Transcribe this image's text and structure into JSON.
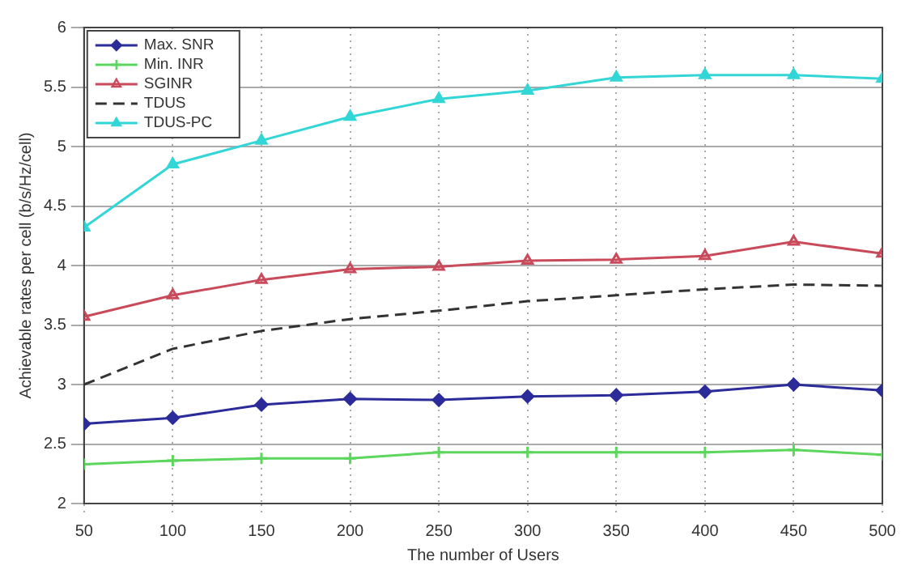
{
  "chart_data": {
    "type": "line",
    "xlabel": "The number of Users",
    "ylabel": "Achievable rates per cell (b/s/Hz/cell)",
    "x": [
      50,
      100,
      150,
      200,
      250,
      300,
      350,
      400,
      450,
      500
    ],
    "xlim": [
      50,
      500
    ],
    "xticks": [
      50,
      100,
      150,
      200,
      250,
      300,
      350,
      400,
      450,
      500
    ],
    "ylim": [
      2,
      6
    ],
    "yticks": [
      2,
      2.5,
      3,
      3.5,
      4,
      4.5,
      5,
      5.5,
      6
    ],
    "grid": true,
    "legend": "top left",
    "series": [
      {
        "name": "Max. SNR",
        "color": "#2b2b9a",
        "marker": "diamond",
        "line_style": "solid",
        "values": [
          2.67,
          2.72,
          2.83,
          2.88,
          2.87,
          2.9,
          2.91,
          2.94,
          3.0,
          2.95
        ]
      },
      {
        "name": "Min. INR",
        "color": "#5cd65c",
        "marker": "cross",
        "line_style": "solid",
        "values": [
          2.33,
          2.36,
          2.38,
          2.38,
          2.43,
          2.43,
          2.43,
          2.43,
          2.45,
          2.41
        ]
      },
      {
        "name": "SGINR",
        "color": "#c94a5a",
        "marker": "triangle",
        "line_style": "solid",
        "values": [
          3.57,
          3.75,
          3.88,
          3.97,
          3.99,
          4.04,
          4.05,
          4.08,
          4.2,
          4.1
        ]
      },
      {
        "name": "TDUS",
        "color": "#333333",
        "marker": "none",
        "line_style": "dashed",
        "values": [
          3.0,
          3.3,
          3.45,
          3.55,
          3.62,
          3.7,
          3.75,
          3.8,
          3.84,
          3.83
        ]
      },
      {
        "name": "TDUS-PC",
        "color": "#33d6d6",
        "marker": "triangle",
        "line_style": "solid",
        "values": [
          4.32,
          4.85,
          5.05,
          5.25,
          5.4,
          5.47,
          5.58,
          5.6,
          5.6,
          5.57
        ]
      }
    ]
  }
}
